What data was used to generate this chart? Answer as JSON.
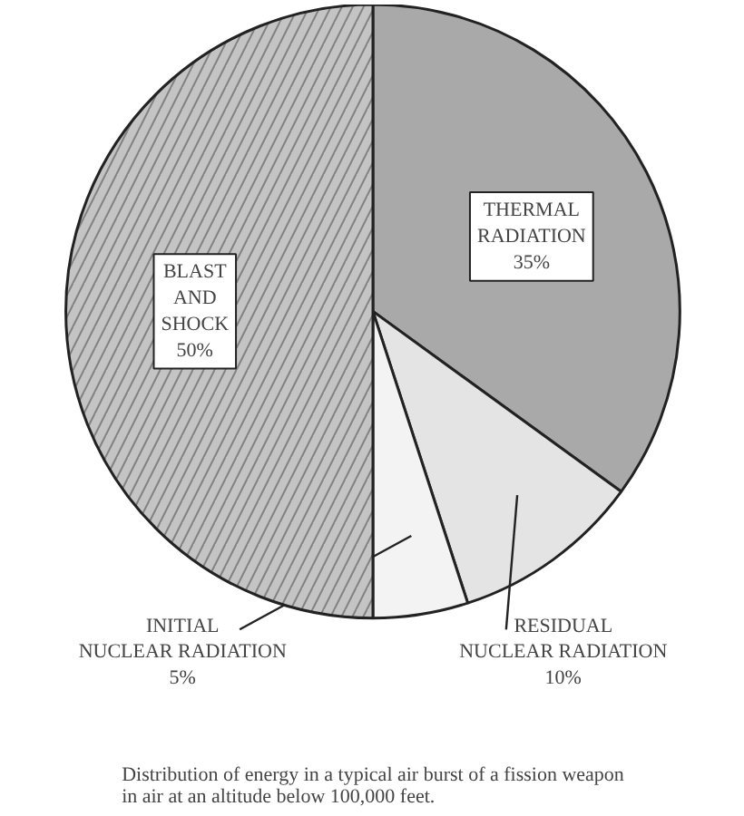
{
  "chart_data": {
    "type": "pie",
    "title": "Distribution of energy in a typical air burst of a fission weapon\nin air at an altitude below 100,000 feet.",
    "categories": [
      "THERMAL\nRADIATION",
      "RESIDUAL\nNUCLEAR RADIATION",
      "INITIAL\nNUCLEAR RADIATION",
      "BLAST\nAND\nSHOCK"
    ],
    "values": [
      35,
      10,
      5,
      50
    ],
    "colors": [
      "#a9a9a9",
      "#e4e4e4",
      "#f3f3f3",
      "#c4c4c4"
    ],
    "value_labels": [
      "35%",
      "10%",
      "5%",
      "50%"
    ]
  }
}
